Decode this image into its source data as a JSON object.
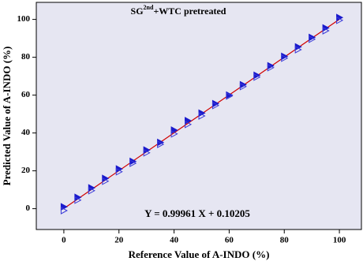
{
  "chart_data": {
    "type": "scatter",
    "title": {
      "base": "SG",
      "sup": "2nd",
      "rest": "+WTC pretreated"
    },
    "xlabel": "Reference Value of A-INDO (%)",
    "ylabel": "Predicted Value of A-INDO (%)",
    "annotation": "Y = 0.99961 X + 0.10205",
    "xlim": [
      -10,
      108
    ],
    "ylim": [
      -11,
      109
    ],
    "xticks": [
      0,
      20,
      40,
      60,
      80,
      100
    ],
    "yticks": [
      0,
      20,
      40,
      60,
      80,
      100
    ],
    "background": "#e6e6f2",
    "series": [
      {
        "color": "#1a1acc",
        "filled": true,
        "x": [
          0,
          5,
          10,
          15,
          20,
          25,
          30,
          35,
          40,
          45,
          50,
          55,
          60,
          65,
          70,
          75,
          80,
          85,
          90,
          95,
          100
        ],
        "values": [
          1,
          6,
          11,
          16,
          21,
          25,
          31,
          35,
          41.5,
          46.5,
          50.5,
          55.5,
          60,
          65.5,
          70.5,
          75.5,
          80.5,
          85.5,
          90.5,
          95.5,
          101
        ]
      },
      {
        "color": "#3a3ad8",
        "filled": false,
        "x": [
          0,
          5,
          10,
          15,
          20,
          25,
          30,
          35,
          40,
          45,
          50,
          55,
          60,
          65,
          70,
          75,
          80,
          85,
          90,
          95,
          100
        ],
        "values": [
          -1,
          4.5,
          9.5,
          14.5,
          19.5,
          24,
          29.5,
          34,
          39.5,
          44.5,
          49,
          54.5,
          59.5,
          64.5,
          69.5,
          74.5,
          79.5,
          84,
          89.5,
          94,
          99.5
        ]
      }
    ],
    "fit": {
      "slope": 0.99961,
      "intercept": 0.10205,
      "xrange": [
        0,
        100
      ],
      "color": "#d00000"
    }
  }
}
